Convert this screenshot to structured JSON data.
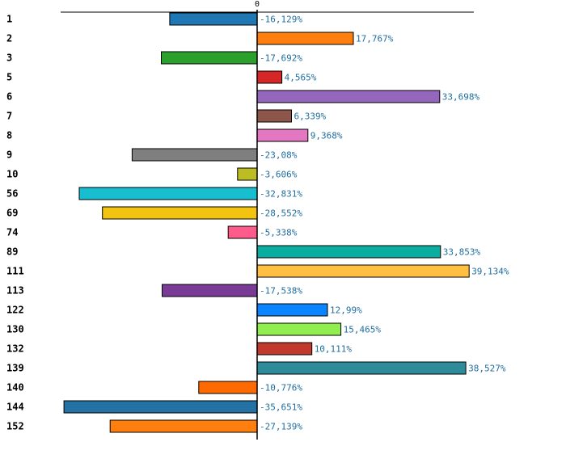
{
  "chart_data": {
    "type": "bar",
    "orientation": "horizontal",
    "zero_tick_label": "0",
    "xlim": [
      -40,
      40
    ],
    "grid": false,
    "categories": [
      "1",
      "2",
      "3",
      "5",
      "6",
      "7",
      "8",
      "9",
      "10",
      "56",
      "69",
      "74",
      "89",
      "111",
      "113",
      "122",
      "130",
      "132",
      "139",
      "140",
      "144",
      "152"
    ],
    "values": [
      -16.129,
      17.767,
      -17.692,
      4.565,
      33.698,
      6.339,
      9.368,
      -23.08,
      -3.606,
      -32.831,
      -28.552,
      -5.338,
      33.853,
      39.134,
      -17.538,
      12.99,
      15.465,
      10.111,
      38.527,
      -10.776,
      -35.651,
      -27.139
    ],
    "value_labels": [
      "-16,129%",
      "17,767%",
      "-17,692%",
      "4,565%",
      "33,698%",
      "6,339%",
      "9,368%",
      "-23,08%",
      "-3,606%",
      "-32,831%",
      "-28,552%",
      "-5,338%",
      "33,853%",
      "39,134%",
      "-17,538%",
      "12,99%",
      "15,465%",
      "10,111%",
      "38,527%",
      "-10,776%",
      "-35,651%",
      "-27,139%"
    ],
    "colors": [
      "#1f77b4",
      "#ff7f0e",
      "#2ca02c",
      "#d62728",
      "#9467bd",
      "#8c564b",
      "#e377c2",
      "#7f7f7f",
      "#bcbd22",
      "#17becf",
      "#f2c40f",
      "#ff5a8c",
      "#0aaea0",
      "#ffbf40",
      "#7a3b96",
      "#0a84ff",
      "#90ee50",
      "#c0392b",
      "#2e8b9a",
      "#ff6a00",
      "#2471a3",
      "#ff7f0e"
    ]
  }
}
